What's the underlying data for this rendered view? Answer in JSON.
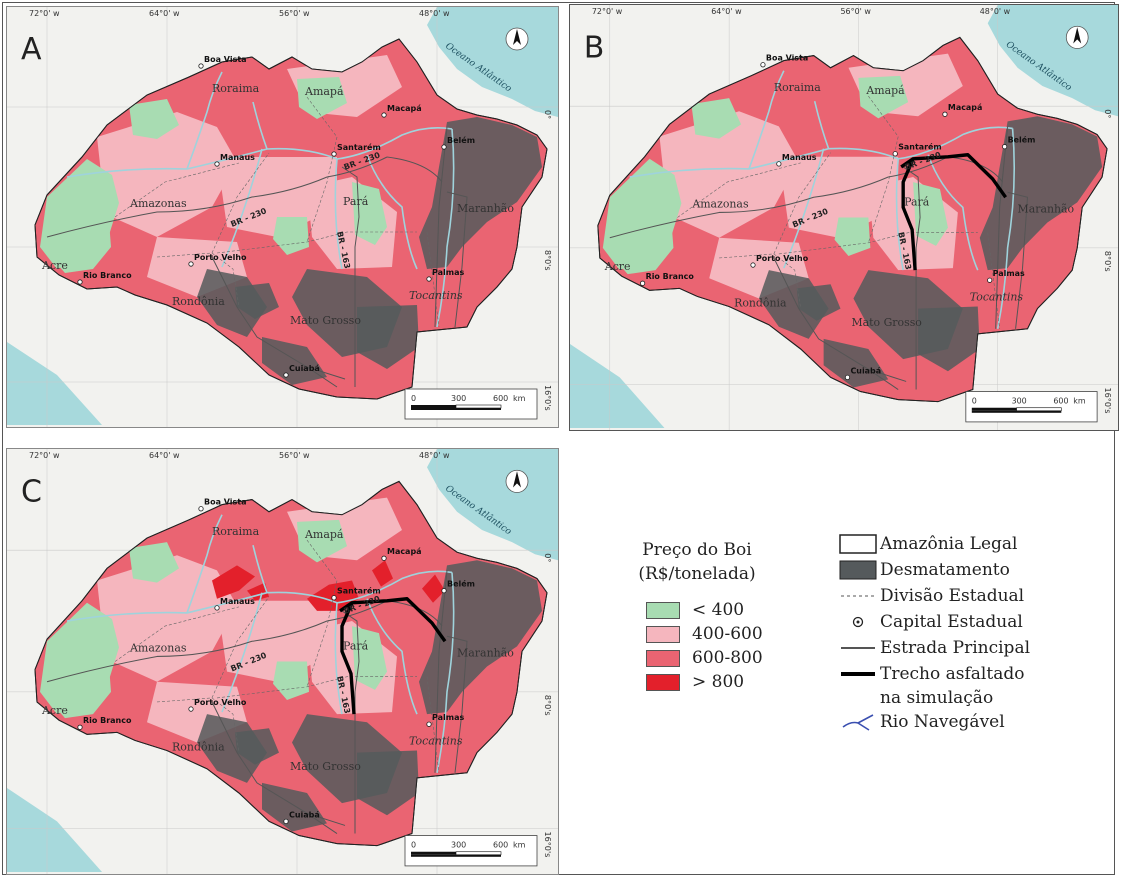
{
  "panels": [
    {
      "letter": "A",
      "longitudes": [
        "72°0' w",
        "64°0' w",
        "56°0' w",
        "48°0' w"
      ],
      "latitudes": [
        "0°",
        "8°0's",
        "16°0's"
      ],
      "states": [
        "Roraima",
        "Amapá",
        "Amazonas",
        "Pará",
        "Maranhão",
        "Acre",
        "Rondônia",
        "Mato Grosso",
        "Tocantins"
      ],
      "cities": [
        "Boa Vista",
        "Macapá",
        "Manaus",
        "Santarém",
        "Belém",
        "Rio Branco",
        "Porto Velho",
        "Palmas",
        "Cuiabá"
      ],
      "roads": [
        "BR - 230",
        "BR - 230",
        "BR - 163"
      ],
      "ocean": "Oceano Atlântico",
      "scale": [
        "0",
        "300",
        "600",
        "km"
      ],
      "paved": false
    },
    {
      "letter": "B",
      "longitudes": [
        "72°0' w",
        "64°0' w",
        "56°0' w",
        "48°0' w"
      ],
      "latitudes": [
        "0°",
        "8°0's",
        "16°0's"
      ],
      "states": [
        "Roraima",
        "Amapá",
        "Amazonas",
        "Pará",
        "Maranhão",
        "Acre",
        "Rondônia",
        "Mato Grosso",
        "Tocantins"
      ],
      "cities": [
        "Boa Vista",
        "Macapá",
        "Manaus",
        "Santarém",
        "Belém",
        "Rio Branco",
        "Porto Velho",
        "Palmas",
        "Cuiabá"
      ],
      "roads": [
        "BR - 230",
        "BR - 230",
        "BR - 163"
      ],
      "ocean": "Oceano Atlântico",
      "scale": [
        "0",
        "300",
        "600",
        "km"
      ],
      "paved": true
    },
    {
      "letter": "C",
      "longitudes": [
        "72°0' w",
        "64°0' w",
        "56°0' w",
        "48°0' w"
      ],
      "latitudes": [
        "0°",
        "8°0's",
        "16°0's"
      ],
      "states": [
        "Roraima",
        "Amapá",
        "Amazonas",
        "Pará",
        "Maranhão",
        "Acre",
        "Rondônia",
        "Mato Grosso",
        "Tocantins"
      ],
      "cities": [
        "Boa Vista",
        "Macapá",
        "Manaus",
        "Santarém",
        "Belém",
        "Rio Branco",
        "Porto Velho",
        "Palmas",
        "Cuiabá"
      ],
      "roads": [
        "BR - 230",
        "BR - 230",
        "BR - 163"
      ],
      "ocean": "Oceano Atlântico",
      "scale": [
        "0",
        "300",
        "600",
        "km"
      ],
      "paved": true
    }
  ],
  "price_legend": {
    "title_line1": "Preço do Boi",
    "title_line2": "(R$/tonelada)",
    "items": [
      {
        "label": "< 400",
        "color": "#a8dcb2"
      },
      {
        "label": "400-600",
        "color": "#f5b6be"
      },
      {
        "label": "600-800",
        "color": "#ea6472"
      },
      {
        "label": "> 800",
        "color": "#e3202b"
      }
    ]
  },
  "symbol_legend": {
    "items": [
      {
        "label": "Amazônia Legal",
        "symbol": "outline-box"
      },
      {
        "label": "Desmatamento",
        "symbol": "dark-box"
      },
      {
        "label": "Divisão Estadual",
        "symbol": "dashed-line"
      },
      {
        "label": "Capital Estadual",
        "symbol": "dot-circle"
      },
      {
        "label": "Estrada Principal",
        "symbol": "thin-line"
      },
      {
        "label": "Trecho asfaltado",
        "label2": "na simulação",
        "symbol": "thick-line"
      },
      {
        "label": "Rio Navegável",
        "symbol": "river-icon"
      }
    ]
  },
  "colors": {
    "ocean": "#a7d9dc",
    "outside": "#f2f2ef",
    "green": "#a8dcb2",
    "pink": "#f5b6be",
    "red": "#ea6472",
    "bright_red": "#e3202b",
    "deforest": "#555a5c",
    "river": "#9fd3dc"
  }
}
